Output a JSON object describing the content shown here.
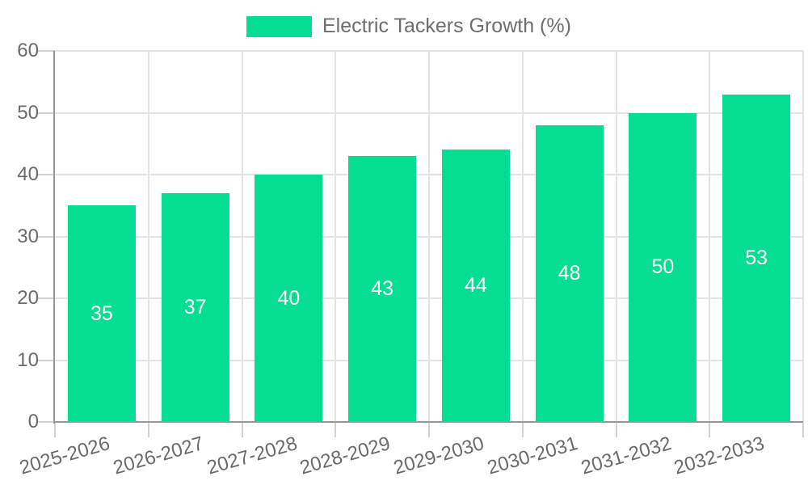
{
  "chart_data": {
    "type": "bar",
    "title": "",
    "legend_label": "Electric Tackers Growth (%)",
    "legend_position": "top-center",
    "categories": [
      "2025-2026",
      "2026-2027",
      "2027-2028",
      "2028-2029",
      "2029-2030",
      "2030-2031",
      "2031-2032",
      "2032-2033"
    ],
    "values": [
      35,
      37,
      40,
      43,
      44,
      48,
      50,
      53
    ],
    "yticks": [
      0,
      10,
      20,
      30,
      40,
      50,
      60
    ],
    "ylim": [
      0,
      60
    ],
    "xlabel": "",
    "ylabel": "",
    "grid": "on",
    "x_label_rotation_deg": -16,
    "bar_value_label_position": "inside-center"
  },
  "colors": {
    "bar": "#05DD92",
    "bar_label": "#ffffff",
    "grid": "#e4e4e4",
    "tick_mark": "#d2d2d2",
    "axis_line": "#979797",
    "tick_text": "#6b6b6b",
    "legend_text": "#6e6e6e",
    "background": "#ffffff"
  }
}
